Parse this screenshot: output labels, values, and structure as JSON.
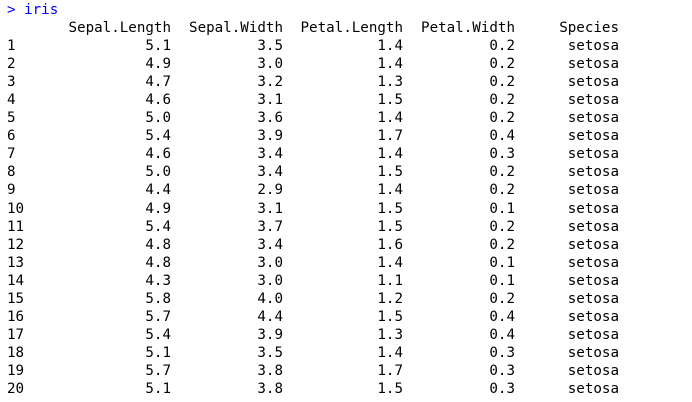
{
  "console": {
    "prompt": ">",
    "command": "iris",
    "columns": [
      "",
      "Sepal.Length",
      "Sepal.Width",
      "Petal.Length",
      "Petal.Width",
      "Species"
    ],
    "rows": [
      [
        "1",
        "5.1",
        "3.5",
        "1.4",
        "0.2",
        "setosa"
      ],
      [
        "2",
        "4.9",
        "3.0",
        "1.4",
        "0.2",
        "setosa"
      ],
      [
        "3",
        "4.7",
        "3.2",
        "1.3",
        "0.2",
        "setosa"
      ],
      [
        "4",
        "4.6",
        "3.1",
        "1.5",
        "0.2",
        "setosa"
      ],
      [
        "5",
        "5.0",
        "3.6",
        "1.4",
        "0.2",
        "setosa"
      ],
      [
        "6",
        "5.4",
        "3.9",
        "1.7",
        "0.4",
        "setosa"
      ],
      [
        "7",
        "4.6",
        "3.4",
        "1.4",
        "0.3",
        "setosa"
      ],
      [
        "8",
        "5.0",
        "3.4",
        "1.5",
        "0.2",
        "setosa"
      ],
      [
        "9",
        "4.4",
        "2.9",
        "1.4",
        "0.2",
        "setosa"
      ],
      [
        "10",
        "4.9",
        "3.1",
        "1.5",
        "0.1",
        "setosa"
      ],
      [
        "11",
        "5.4",
        "3.7",
        "1.5",
        "0.2",
        "setosa"
      ],
      [
        "12",
        "4.8",
        "3.4",
        "1.6",
        "0.2",
        "setosa"
      ],
      [
        "13",
        "4.8",
        "3.0",
        "1.4",
        "0.1",
        "setosa"
      ],
      [
        "14",
        "4.3",
        "3.0",
        "1.1",
        "0.1",
        "setosa"
      ],
      [
        "15",
        "5.8",
        "4.0",
        "1.2",
        "0.2",
        "setosa"
      ],
      [
        "16",
        "5.7",
        "4.4",
        "1.5",
        "0.4",
        "setosa"
      ],
      [
        "17",
        "5.4",
        "3.9",
        "1.3",
        "0.4",
        "setosa"
      ],
      [
        "18",
        "5.1",
        "3.5",
        "1.4",
        "0.3",
        "setosa"
      ],
      [
        "19",
        "5.7",
        "3.8",
        "1.7",
        "0.3",
        "setosa"
      ],
      [
        "20",
        "5.1",
        "3.8",
        "1.5",
        "0.3",
        "setosa"
      ]
    ]
  },
  "colors": {
    "prompt": "#0000ff",
    "output": "#000000",
    "background": "#ffffff"
  }
}
